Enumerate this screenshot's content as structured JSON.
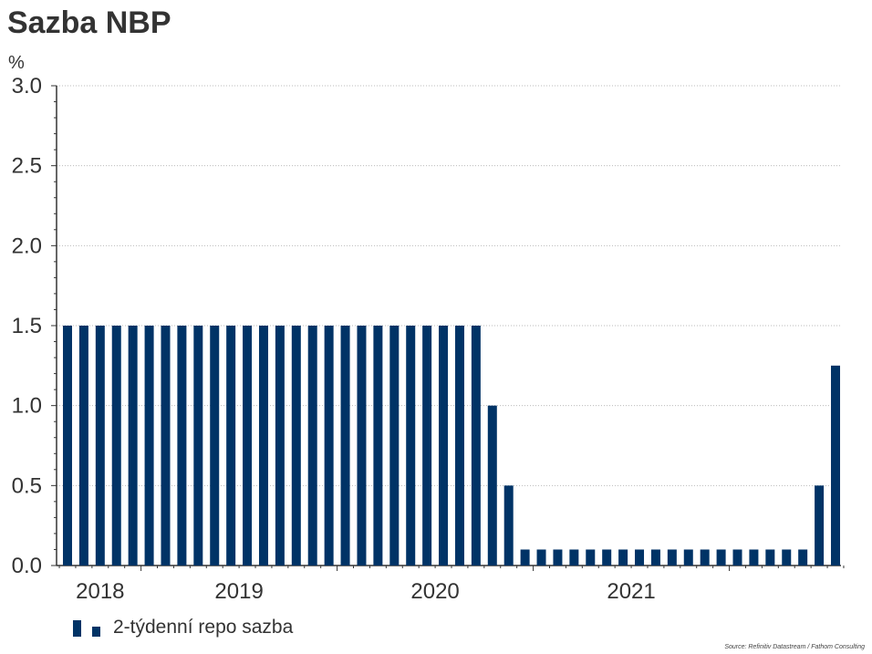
{
  "page": {
    "title": "Sazba NBP",
    "unit": "%",
    "source": "Source: Refinitiv Datastream / Fathom Consulting"
  },
  "chart_data": {
    "type": "bar",
    "title": "Sazba NBP",
    "xlabel": "",
    "ylabel": "%",
    "ylim": [
      0,
      3.0
    ],
    "yticks": [
      "0.0",
      "0.5",
      "1.0",
      "1.5",
      "2.0",
      "2.5",
      "3.0"
    ],
    "xtick_labels": [
      "2018",
      "2019",
      "2020",
      "2021"
    ],
    "grid": true,
    "legend_position": "bottom-left",
    "color": "#003366",
    "series": [
      {
        "name": "2-týdenní repo sazba",
        "values": [
          1.5,
          1.5,
          1.5,
          1.5,
          1.5,
          1.5,
          1.5,
          1.5,
          1.5,
          1.5,
          1.5,
          1.5,
          1.5,
          1.5,
          1.5,
          1.5,
          1.5,
          1.5,
          1.5,
          1.5,
          1.5,
          1.5,
          1.5,
          1.5,
          1.5,
          1.5,
          1.0,
          0.5,
          0.1,
          0.1,
          0.1,
          0.1,
          0.1,
          0.1,
          0.1,
          0.1,
          0.1,
          0.1,
          0.1,
          0.1,
          0.1,
          0.1,
          0.1,
          0.1,
          0.1,
          0.1,
          0.5,
          1.25
        ]
      }
    ]
  }
}
